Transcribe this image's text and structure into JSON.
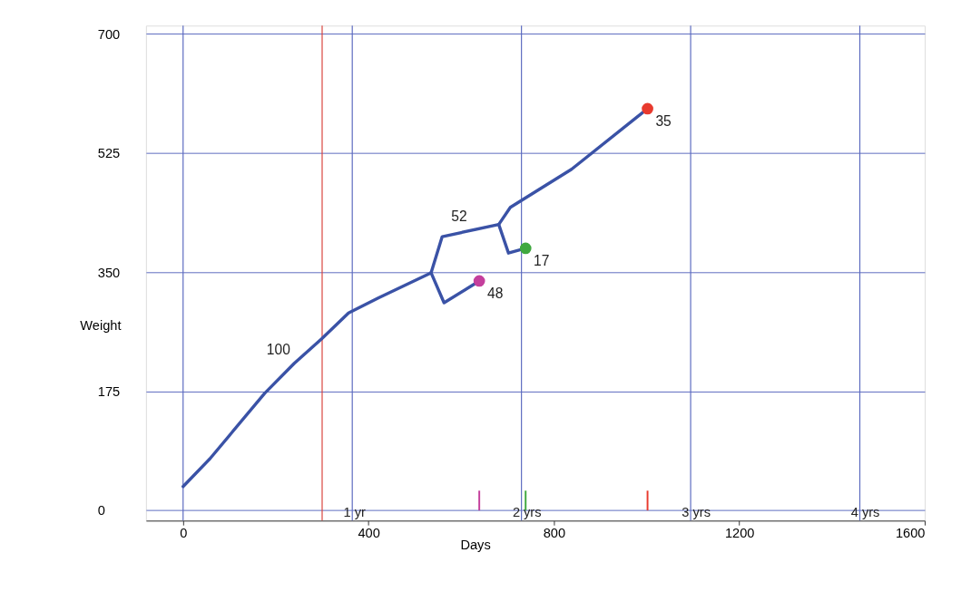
{
  "chart_data": {
    "type": "line",
    "xlabel": "Days",
    "ylabel": "Weight",
    "xlim": [
      -80,
      1600
    ],
    "xticks": [
      0,
      400,
      800,
      1200,
      1600
    ],
    "ylim": [
      -15,
      712
    ],
    "yticks": [
      0,
      175,
      350,
      525,
      700
    ],
    "grid": "y",
    "marker": "none",
    "line_style": "solid",
    "series": [
      {
        "color": "#3a52a6",
        "x": [
          0,
          58,
          176,
          240,
          299,
          357,
          421,
          535
        ],
        "values": [
          35,
          76,
          172,
          216,
          252,
          290,
          312,
          349
        ]
      },
      {
        "color": "#3a52a6",
        "x": [
          535,
          563,
          639
        ],
        "values": [
          349,
          305,
          337
        ]
      },
      {
        "color": "#3a52a6",
        "x": [
          535,
          559,
          681,
          706,
          838,
          1002
        ],
        "values": [
          349,
          402,
          420,
          445,
          501,
          590
        ]
      },
      {
        "color": "#3a52a6",
        "x": [
          681,
          702,
          739
        ],
        "values": [
          420,
          378,
          385
        ]
      },
      {
        "type": "bar",
        "x": [
          639,
          739,
          1002
        ],
        "values": [
          29,
          29,
          29
        ],
        "colors": [
          "#c43f9c",
          "#3fa83f",
          "#e83a2e"
        ]
      },
      {
        "type": "scatter",
        "marker": "circle",
        "x": [
          639,
          739,
          1002
        ],
        "values": [
          337,
          385,
          590
        ],
        "colors": [
          "#c43f9c",
          "#3fa83f",
          "#e83a2e"
        ]
      }
    ],
    "ref_lines": [
      {
        "axis": "x",
        "value": 0,
        "label": null,
        "color": "#5b6abf"
      },
      {
        "axis": "x",
        "value": 365,
        "label": "1 yr",
        "color": "#5b6abf"
      },
      {
        "axis": "x",
        "value": 730,
        "label": "2 yrs",
        "color": "#5b6abf"
      },
      {
        "axis": "x",
        "value": 1095,
        "label": "3 yrs",
        "color": "#5b6abf"
      },
      {
        "axis": "x",
        "value": 1460,
        "label": "4 yrs",
        "color": "#5b6abf"
      },
      {
        "axis": "x",
        "value": 300,
        "label": null,
        "color": "#d9413a"
      }
    ],
    "annotations": [
      {
        "text": "100",
        "x": 240,
        "y": 216
      },
      {
        "text": "52",
        "x": 630,
        "y": 412
      },
      {
        "text": "48",
        "x": 639,
        "y": 337
      },
      {
        "text": "17",
        "x": 739,
        "y": 385
      },
      {
        "text": "35",
        "x": 1002,
        "y": 590
      }
    ]
  }
}
